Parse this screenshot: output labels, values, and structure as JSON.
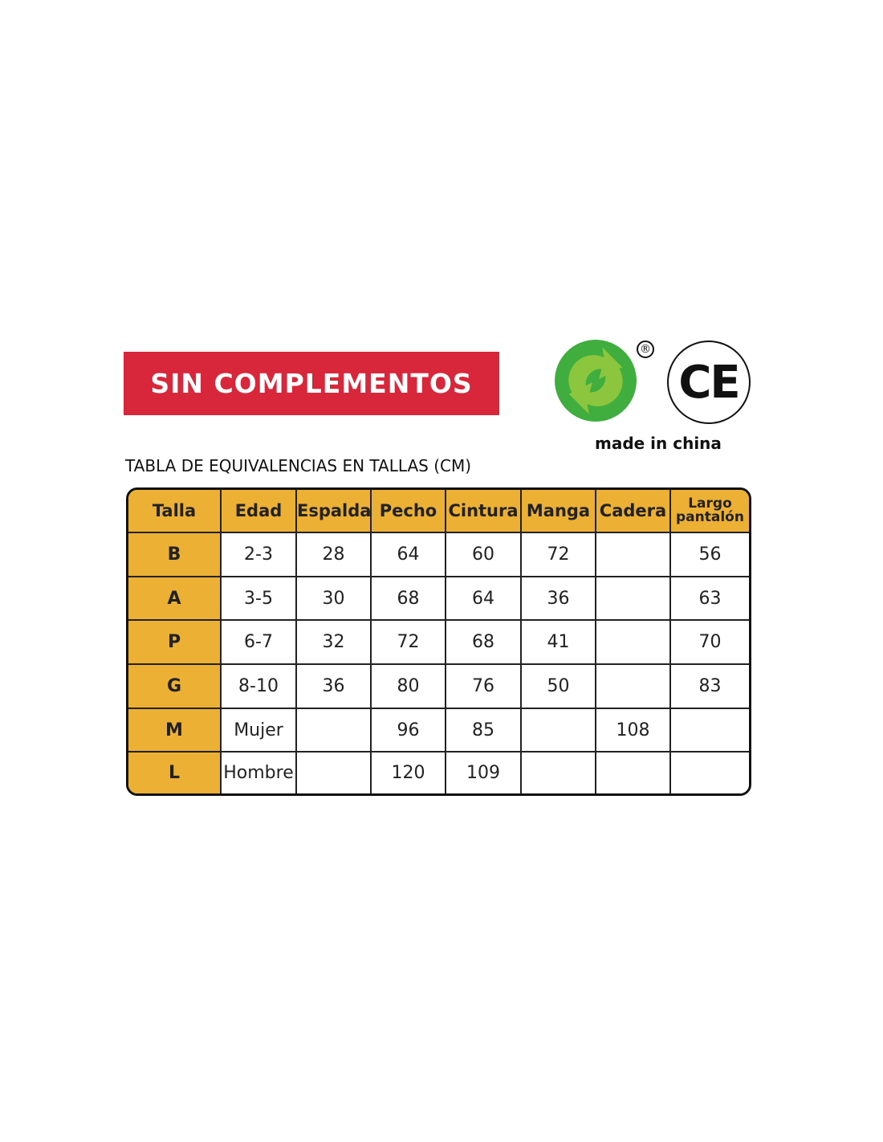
{
  "banner": "SIN COMPLEMENTOS",
  "logos": {
    "green_dot": "green-dot-recycling-icon",
    "registered": "®",
    "ce_mark": "CE",
    "made_in": "made in china"
  },
  "colors": {
    "banner": "#d8263a",
    "header": "#ecb035"
  },
  "table_title": "TABLA DE EQUIVALENCIAS EN TALLAS (CM)",
  "table": {
    "headers": [
      "Talla",
      "Edad",
      "Espalda",
      "Pecho",
      "Cintura",
      "Manga",
      "Cadera",
      "Largo pantalón"
    ],
    "rows": [
      [
        "B",
        "2-3",
        "28",
        "64",
        "60",
        "72",
        "",
        "56"
      ],
      [
        "A",
        "3-5",
        "30",
        "68",
        "64",
        "36",
        "",
        "63"
      ],
      [
        "P",
        "6-7",
        "32",
        "72",
        "68",
        "41",
        "",
        "70"
      ],
      [
        "G",
        "8-10",
        "36",
        "80",
        "76",
        "50",
        "",
        "83"
      ],
      [
        "M",
        "Mujer",
        "",
        "96",
        "85",
        "",
        "108",
        ""
      ],
      [
        "L",
        "Hombre",
        "",
        "120",
        "109",
        "",
        "",
        ""
      ]
    ]
  }
}
